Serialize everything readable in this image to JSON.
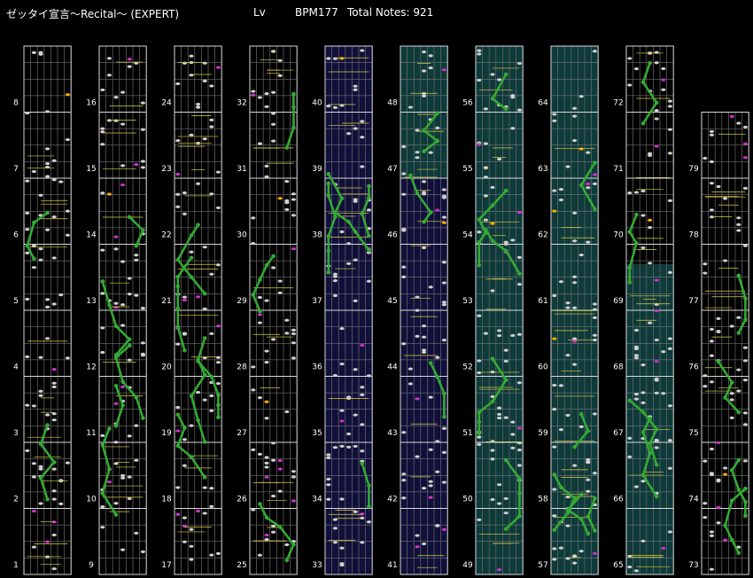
{
  "header": {
    "title": "ゼッタイ宣言〜Recital〜 (EXPERT)",
    "level_label": "Lv",
    "bpm": "BPM177",
    "total_notes": "Total Notes: 921"
  },
  "colors": {
    "background": "#000000",
    "lane_line": "#6a6a6a",
    "measure_line": "#d8d8d8",
    "beat_line": "#8a8a8a",
    "bg_default": "#000000",
    "bg_blue": "#10103a",
    "bg_teal": "#0e3a3a",
    "tap_note": "#d0d0d0",
    "slide_note": "#33aa33",
    "flick_note": "#cc33cc",
    "gold_note": "#ffaa00",
    "sync_line": "#ddcc44"
  },
  "columns": [
    {
      "measures": [
        1,
        2,
        3,
        4,
        5,
        6,
        7,
        8
      ],
      "bg": "default"
    },
    {
      "measures": [
        9,
        10,
        11,
        12,
        13,
        14,
        15,
        16
      ],
      "bg": "default"
    },
    {
      "measures": [
        17,
        18,
        19,
        20,
        21,
        22,
        23,
        24
      ],
      "bg": "default"
    },
    {
      "measures": [
        25,
        26,
        27,
        28,
        29,
        30,
        31,
        32
      ],
      "bg": "default"
    },
    {
      "measures": [
        33,
        34,
        35,
        36,
        37,
        38,
        39,
        40
      ],
      "bg": "blue"
    },
    {
      "measures": [
        41,
        42,
        43,
        44,
        45,
        46,
        47,
        48
      ],
      "bg": "mixed"
    },
    {
      "measures": [
        49,
        50,
        51,
        52,
        53,
        54,
        55,
        56
      ],
      "bg": "teal"
    },
    {
      "measures": [
        57,
        58,
        59,
        60,
        61,
        62,
        63,
        64
      ],
      "bg": "teal"
    },
    {
      "measures": [
        65,
        66,
        67,
        68,
        69,
        70,
        71,
        72
      ],
      "bg": "mixed"
    },
    {
      "measures": [
        73,
        74,
        75,
        76,
        77,
        78,
        79
      ],
      "bg": "default"
    }
  ]
}
